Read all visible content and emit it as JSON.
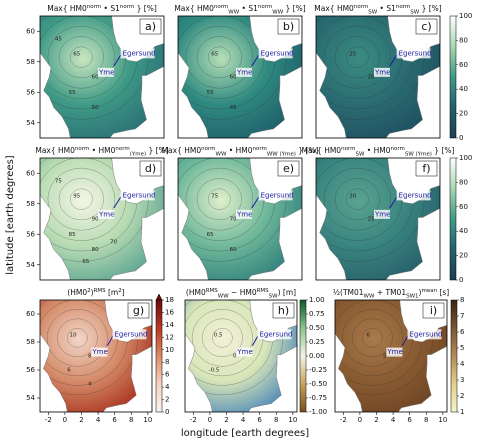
{
  "axis_labels": {
    "y": "latitude [earth degrees]",
    "x": "longitude [earth degrees]"
  },
  "yticks": [
    54,
    56,
    58,
    60
  ],
  "xticks": [
    -2,
    0,
    2,
    4,
    6,
    8,
    10
  ],
  "sites": [
    "Egersund",
    "Yme"
  ],
  "panels": [
    {
      "letter": "a)",
      "title": [
        [
          "Max{ HM0",
          "base"
        ],
        [
          "norm",
          "sup"
        ],
        [
          " • S1",
          "base"
        ],
        [
          "norm",
          "sup"
        ],
        [
          " } [%]",
          "base"
        ]
      ],
      "contour_labels": [
        65,
        60,
        55,
        50,
        45
      ]
    },
    {
      "letter": "b)",
      "title": [
        [
          "Max{ HM0",
          "base"
        ],
        [
          "norm",
          "sup"
        ],
        [
          "WW",
          "sub"
        ],
        [
          " • S1",
          "base"
        ],
        [
          "norm",
          "sup"
        ],
        [
          "WW",
          "sub"
        ],
        [
          " } [%]",
          "base"
        ]
      ],
      "contour_labels": [
        65,
        60,
        55,
        45
      ]
    },
    {
      "letter": "c)",
      "title": [
        [
          "Max{ HM0",
          "base"
        ],
        [
          "norm",
          "sup"
        ],
        [
          "SW",
          "sub"
        ],
        [
          " • S1",
          "base"
        ],
        [
          "norm",
          "sup"
        ],
        [
          "SW",
          "sub"
        ],
        [
          " } [%]",
          "base"
        ]
      ],
      "contour_labels": [
        25,
        20
      ]
    },
    {
      "letter": "d)",
      "title": [
        [
          "Max{ HM0",
          "base"
        ],
        [
          "norm",
          "sup"
        ],
        [
          " • HM0",
          "base"
        ],
        [
          "norm",
          "sup"
        ],
        [
          "(Yme)",
          "sub"
        ],
        [
          " } [%]",
          "base"
        ]
      ],
      "contour_labels": [
        95,
        90,
        85,
        80,
        75,
        70,
        65
      ]
    },
    {
      "letter": "e)",
      "title": [
        [
          "Max{ HM0",
          "base"
        ],
        [
          "norm",
          "sup"
        ],
        [
          "WW",
          "sub"
        ],
        [
          " • HM0",
          "base"
        ],
        [
          "norm",
          "sup"
        ],
        [
          "WW (Yme)",
          "sub"
        ],
        [
          " } [%]",
          "base"
        ]
      ],
      "contour_labels": [
        75,
        70,
        65,
        60
      ]
    },
    {
      "letter": "f)",
      "title": [
        [
          "Max{ HM0",
          "base"
        ],
        [
          "norm",
          "sup"
        ],
        [
          "SW",
          "sub"
        ],
        [
          " • HM0",
          "base"
        ],
        [
          "norm",
          "sup"
        ],
        [
          "SW (Yme)",
          "sub"
        ],
        [
          " } [%]",
          "base"
        ]
      ],
      "contour_labels": [
        30,
        25
      ]
    },
    {
      "letter": "g)",
      "title": [
        [
          "(HM0",
          "base"
        ],
        [
          "2",
          "sup"
        ],
        [
          ")",
          "base"
        ],
        [
          "RMS",
          "sup"
        ],
        [
          " [m",
          "base"
        ],
        [
          "2",
          "sup"
        ],
        [
          "]",
          "base"
        ]
      ],
      "contour_labels": [
        10,
        8,
        6,
        4
      ]
    },
    {
      "letter": "h)",
      "title": [
        [
          "(HM0",
          "base"
        ],
        [
          "RMS",
          "sup"
        ],
        [
          "WW",
          "sub"
        ],
        [
          " − HM0",
          "base"
        ],
        [
          "RMS",
          "sup"
        ],
        [
          "SW",
          "sub"
        ],
        [
          ") [m]",
          "base"
        ]
      ],
      "contour_labels": [
        0.5,
        0,
        -0.5
      ]
    },
    {
      "letter": "i)",
      "title": [
        [
          "½(TM01",
          "base"
        ],
        [
          "WW",
          "sub"
        ],
        [
          " + TM01",
          "base"
        ],
        [
          "SW1",
          "sub"
        ],
        [
          ")",
          "base"
        ],
        [
          "mean",
          "sup"
        ],
        [
          " [s]",
          "base"
        ]
      ],
      "contour_labels": [
        6,
        5
      ]
    }
  ],
  "colorbars": [
    {
      "lim": [
        0,
        100
      ],
      "ticks": [
        0,
        20,
        40,
        60,
        80,
        100
      ]
    },
    {
      "lim": [
        0,
        100
      ],
      "ticks": [
        0,
        20,
        40,
        60,
        80,
        100
      ]
    },
    {
      "lim": [
        0,
        18
      ],
      "ticks": [
        0,
        2,
        4,
        6,
        8,
        10,
        12,
        14,
        16,
        18
      ]
    },
    {
      "lim": [
        -1,
        1
      ],
      "ticks": [
        {
          "value": -1,
          "label": "-1.00"
        },
        {
          "value": -0.75,
          "label": "-0.75"
        },
        {
          "value": -0.5,
          "label": "-0.50"
        },
        {
          "value": -0.25,
          "label": "-0.25"
        },
        {
          "value": 0,
          "label": "0.00"
        },
        {
          "value": 0.25,
          "label": "0.25"
        },
        {
          "value": 0.5,
          "label": "0.50"
        },
        {
          "value": 0.75,
          "label": "0.75"
        },
        {
          "value": 1,
          "label": "1.00"
        }
      ]
    },
    {
      "lim": [
        1,
        8
      ],
      "ticks": [
        1,
        2,
        3,
        4,
        5,
        6,
        7,
        8
      ]
    }
  ]
}
